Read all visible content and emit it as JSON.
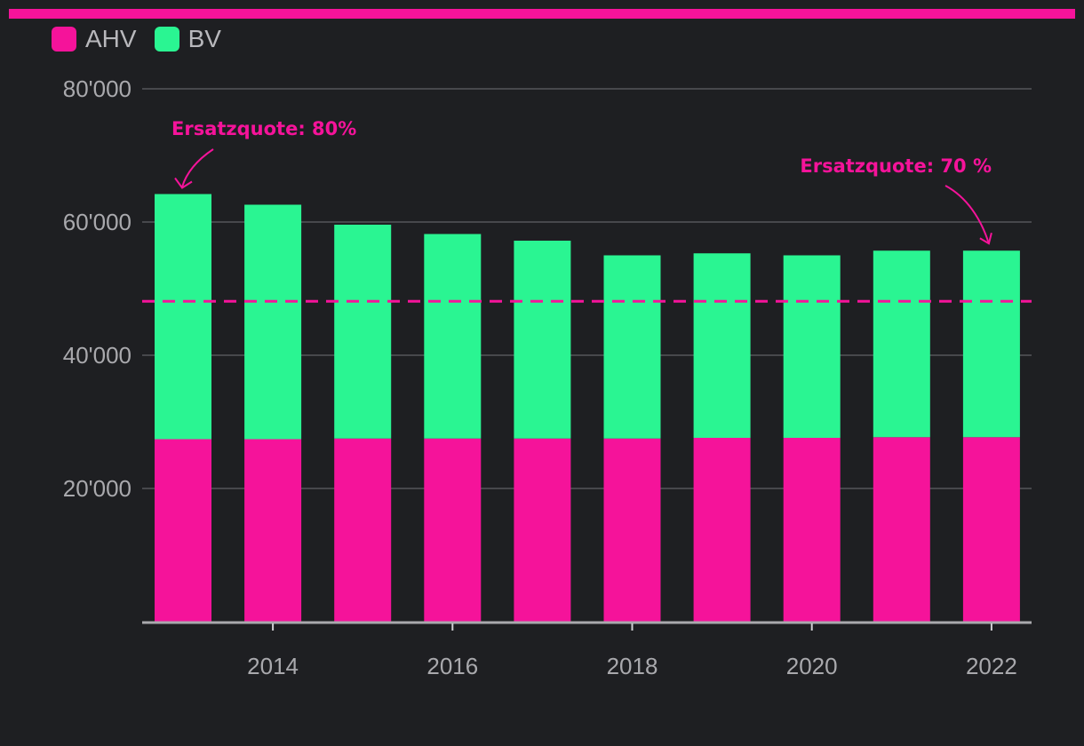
{
  "chart_data": {
    "type": "bar",
    "stacked": true,
    "categories": [
      "2013",
      "2014",
      "2015",
      "2016",
      "2017",
      "2018",
      "2019",
      "2020",
      "2021",
      "2022"
    ],
    "series": [
      {
        "name": "AHV",
        "color": "#f5139a",
        "values": [
          27400,
          27400,
          27500,
          27500,
          27500,
          27500,
          27600,
          27600,
          27700,
          27700
        ]
      },
      {
        "name": "BV",
        "color": "#2af592",
        "values": [
          36800,
          35200,
          32100,
          30700,
          29700,
          27500,
          27700,
          27400,
          28000,
          28000
        ]
      }
    ],
    "x_tick_labels": [
      "2014",
      "2016",
      "2018",
      "2020",
      "2022"
    ],
    "y_tick_labels": [
      "20'000",
      "40'000",
      "60'000",
      "80'000"
    ],
    "y_ticks": [
      20000,
      40000,
      60000,
      80000
    ],
    "ylim": [
      0,
      80000
    ],
    "reference_line": {
      "value": 48100,
      "color": "#f5139a",
      "style": "dashed"
    },
    "annotations": [
      {
        "text": "Ersatzquote: 80%",
        "category": "2013"
      },
      {
        "text": "Ersatzquote: 70 %",
        "category": "2022"
      }
    ],
    "accent_color": "#f5139a",
    "legend_position": "top-left",
    "grid": true
  }
}
